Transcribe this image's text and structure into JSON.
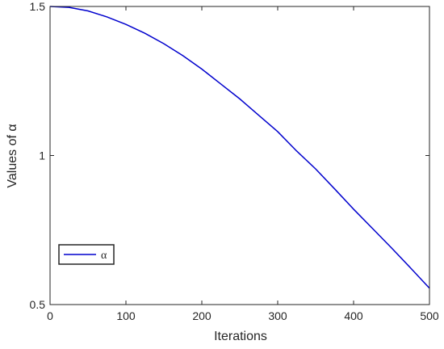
{
  "chart_data": {
    "type": "line",
    "xlabel": "Iterations",
    "ylabel": "Values of α",
    "x": [
      0,
      25,
      50,
      75,
      100,
      125,
      150,
      175,
      200,
      225,
      250,
      275,
      300,
      325,
      350,
      375,
      400,
      425,
      450,
      475,
      500
    ],
    "series": [
      {
        "name": "α",
        "color": "#0000cd",
        "values": [
          1.5,
          1.497,
          1.485,
          1.465,
          1.44,
          1.41,
          1.375,
          1.335,
          1.29,
          1.24,
          1.19,
          1.135,
          1.08,
          1.015,
          0.955,
          0.888,
          0.82,
          0.755,
          0.69,
          0.623,
          0.555
        ]
      }
    ],
    "xlim": [
      0,
      500
    ],
    "xticks": [
      0,
      100,
      200,
      300,
      400,
      500
    ],
    "ylim": [
      0.5,
      1.5
    ],
    "yticks": [
      0.5,
      1,
      1.5
    ],
    "legend": "lower left"
  }
}
